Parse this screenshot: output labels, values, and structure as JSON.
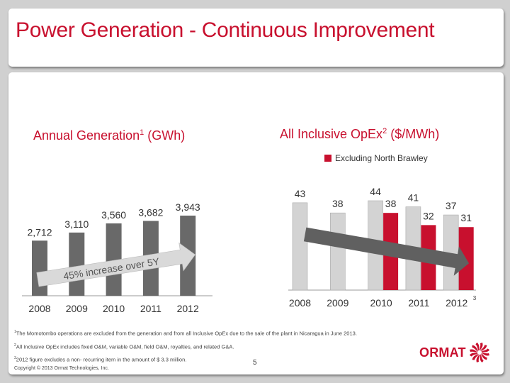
{
  "page": {
    "title": "Power Generation - Continuous Improvement",
    "page_number": "5",
    "copyright": "Copyright © 2013 Ormat Technologies, Inc.",
    "brand": {
      "name": "ORMAT",
      "color": "#c8102e"
    }
  },
  "footnotes": [
    {
      "mark": "1",
      "text": "The Momotombo operations are excluded from the generation  and from all Inclusive OpEx due to the sale of  the plant in Nicaragua in June 2013."
    },
    {
      "mark": "2",
      "text": "All Inclusive OpEx includes fixed O&M, variable O&M, field O&M, royalties, and related G&A."
    },
    {
      "mark": "3",
      "text": "2012 figure  excludes a non- recurring item in the amount of $ 3.3 million."
    }
  ],
  "chart_data": [
    {
      "type": "bar",
      "title": "Annual Generation",
      "title_superscript": "1",
      "title_unit": "(GWh)",
      "categories": [
        "2008",
        "2009",
        "2010",
        "2011",
        "2012"
      ],
      "values": [
        2712,
        3110,
        3560,
        3682,
        3943
      ],
      "value_labels": [
        "2,712",
        "3,110",
        "3,560",
        "3,682",
        "3,943"
      ],
      "bar_color": "#696969",
      "ylim": [
        0,
        3943
      ],
      "grid": false,
      "annotation": {
        "text": "45% increase over 5Y",
        "shape": "upward-arrow"
      }
    },
    {
      "type": "bar",
      "title": "All Inclusive OpEx",
      "title_superscript": "2",
      "title_unit": "($/MWh)",
      "categories": [
        "2008",
        "2009",
        "2010",
        "2011",
        "2012"
      ],
      "category_superscripts": [
        "",
        "",
        "",
        "",
        "3"
      ],
      "series": [
        {
          "name": "All Inclusive",
          "color": "#d3d3d3",
          "values": [
            43,
            38,
            44,
            41,
            37
          ]
        },
        {
          "name": "Excluding North Brawley",
          "color": "#c8102e",
          "values": [
            null,
            null,
            38,
            32,
            31
          ]
        }
      ],
      "legend": {
        "entries": [
          "Excluding North Brawley"
        ],
        "placement": "top-center"
      },
      "ylim": [
        0,
        44
      ],
      "grid": false,
      "annotation": {
        "text": "",
        "shape": "downward-arrow"
      }
    }
  ]
}
